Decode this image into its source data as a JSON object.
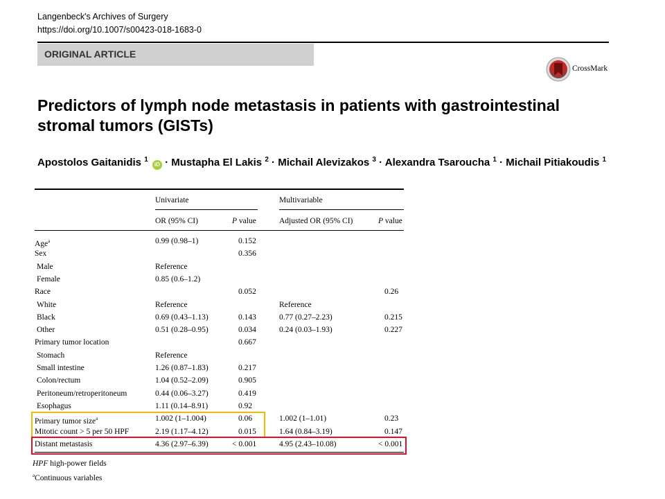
{
  "journal": {
    "name": "Langenbeck's Archives of Surgery",
    "doi": "https://doi.org/10.1007/s00423-018-1683-0"
  },
  "article_type": "ORIGINAL ARTICLE",
  "crossmark": {
    "label": "CrossMark",
    "icon": "crossmark-icon"
  },
  "title": "Predictors of lymph node metastasis in patients with gastrointestinal stromal tumors (GISTs)",
  "authors": [
    {
      "name": "Apostolos Gaitanidis",
      "aff": "1",
      "orcid": true
    },
    {
      "name": "Mustapha El Lakis",
      "aff": "2"
    },
    {
      "name": "Michail Alevizakos",
      "aff": "3"
    },
    {
      "name": "Alexandra Tsaroucha",
      "aff": "1"
    },
    {
      "name": "Michail Pitiakoudis",
      "aff": "1"
    }
  ],
  "orcid_label": "iD",
  "separator": "·",
  "table": {
    "groups": {
      "univariate": "Univariate",
      "multivariable": "Multivariable"
    },
    "columns": {
      "or": "OR (95% CI)",
      "p": "value",
      "p_italic": "P",
      "adj_or": "Adjusted OR (95% CI)"
    },
    "rows": [
      {
        "label": "Age",
        "sup": "a",
        "or": "0.99 (0.98–1)",
        "p": "0.152",
        "adj": "",
        "p2": ""
      },
      {
        "label": "Sex",
        "or": "",
        "p": "0.356",
        "adj": "",
        "p2": ""
      },
      {
        "label": "Male",
        "indent": true,
        "or": "Reference",
        "p": "",
        "adj": "",
        "p2": ""
      },
      {
        "label": "Female",
        "indent": true,
        "or": "0.85 (0.6–1.2)",
        "p": "",
        "adj": "",
        "p2": ""
      },
      {
        "label": "Race",
        "or": "",
        "p": "0.052",
        "adj": "",
        "p2": "0.26"
      },
      {
        "label": "White",
        "indent": true,
        "or": "Reference",
        "p": "",
        "adj": "Reference",
        "p2": ""
      },
      {
        "label": "Black",
        "indent": true,
        "or": "0.69 (0.43–1.13)",
        "p": "0.143",
        "adj": "0.77 (0.27–2.23)",
        "p2": "0.215"
      },
      {
        "label": "Other",
        "indent": true,
        "or": "0.51 (0.28–0.95)",
        "p": "0.034",
        "adj": "0.24 (0.03–1.93)",
        "p2": "0.227"
      },
      {
        "label": "Primary tumor location",
        "or": "",
        "p": "0.667",
        "adj": "",
        "p2": ""
      },
      {
        "label": "Stomach",
        "indent": true,
        "or": "Reference",
        "p": "",
        "adj": "",
        "p2": ""
      },
      {
        "label": "Small intestine",
        "indent": true,
        "or": "1.26 (0.87–1.83)",
        "p": "0.217",
        "adj": "",
        "p2": ""
      },
      {
        "label": "Colon/rectum",
        "indent": true,
        "or": "1.04 (0.52–2.09)",
        "p": "0.905",
        "adj": "",
        "p2": ""
      },
      {
        "label": "Peritoneum/retroperitoneum",
        "indent": true,
        "or": "0.44 (0.06–3.27)",
        "p": "0.419",
        "adj": "",
        "p2": ""
      },
      {
        "label": "Esophagus",
        "indent": true,
        "or": "1.11 (0.14–8.91)",
        "p": "0.92",
        "adj": "",
        "p2": ""
      },
      {
        "label": "Primary tumor size",
        "sup": "a",
        "or": "1.002 (1–1.004)",
        "p": "0.06",
        "adj": "1.002 (1–1.01)",
        "p2": "0.23"
      },
      {
        "label": "Mitotic count > 5 per 50 HPF",
        "or": "2.19 (1.17–4.12)",
        "p": "0.015",
        "adj": "1.64 (0.84–3.19)",
        "p2": "0.147"
      },
      {
        "label": "Distant metastasis",
        "or": "4.36 (2.97–6.39)",
        "p": "< 0.001",
        "adj": "4.95 (2.43–10.08)",
        "p2": "< 0.001"
      }
    ]
  },
  "footnotes": {
    "hpf_abbr": "HPF",
    "hpf_text": "high-power fields",
    "a_mark": "a",
    "a_text": "Continuous variables"
  },
  "highlight_colors": {
    "yellow": "#f4b800",
    "red": "#e0102a"
  }
}
